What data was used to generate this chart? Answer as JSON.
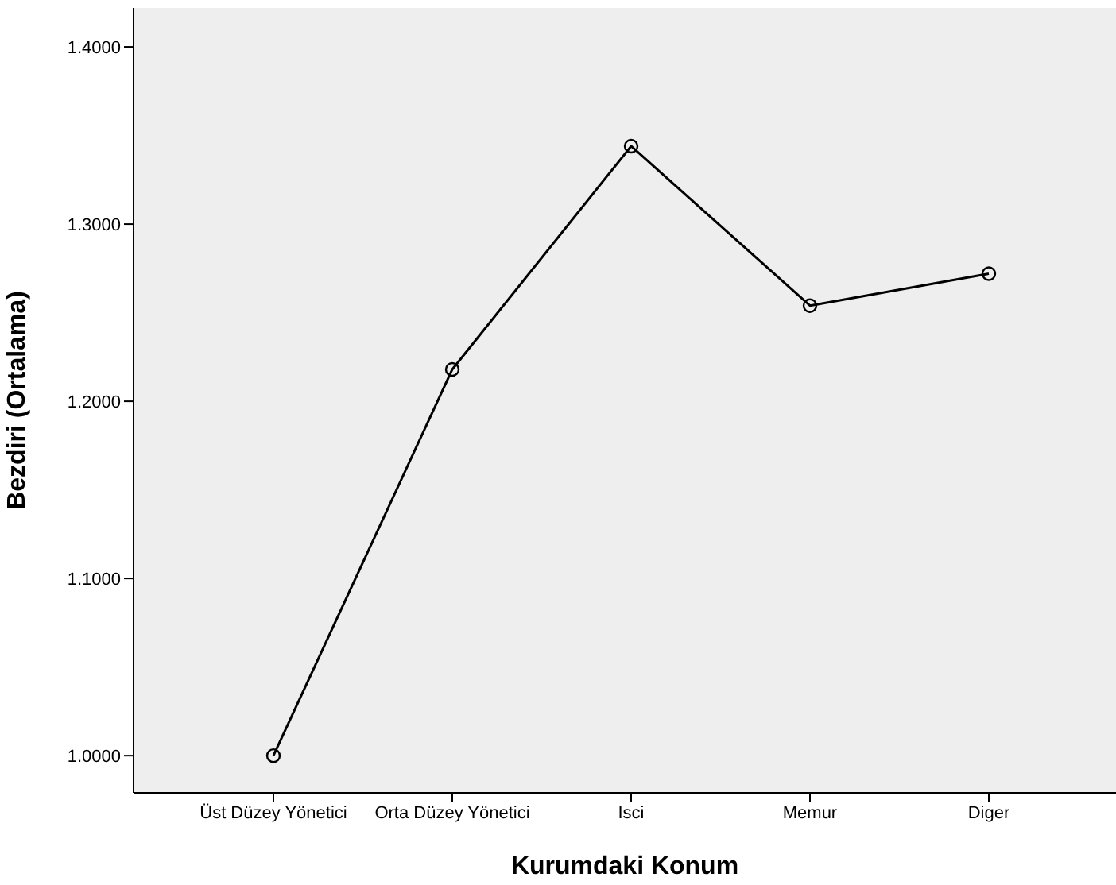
{
  "chart_data": {
    "type": "line",
    "xlabel": "Kurumdaki Konum",
    "ylabel": "Bezdiri (Ortalama)",
    "categories": [
      "Üst Düzey Yönetici",
      "Orta Düzey Yönetici",
      "Isci",
      "Memur",
      "Diger"
    ],
    "series": [
      {
        "color": "#000000",
        "values": [
          1.0,
          1.218,
          1.344,
          1.254,
          1.272
        ]
      }
    ],
    "ylim": [
      0.979,
      1.422
    ],
    "yticks": [
      {
        "value": 1.0,
        "label": "1.0000"
      },
      {
        "value": 1.1,
        "label": "1.1000"
      },
      {
        "value": 1.2,
        "label": "1.2000"
      },
      {
        "value": 1.3,
        "label": "1.3000"
      },
      {
        "value": 1.4,
        "label": "1.4000"
      }
    ],
    "marker": "circle",
    "grid": false,
    "legend": false
  }
}
